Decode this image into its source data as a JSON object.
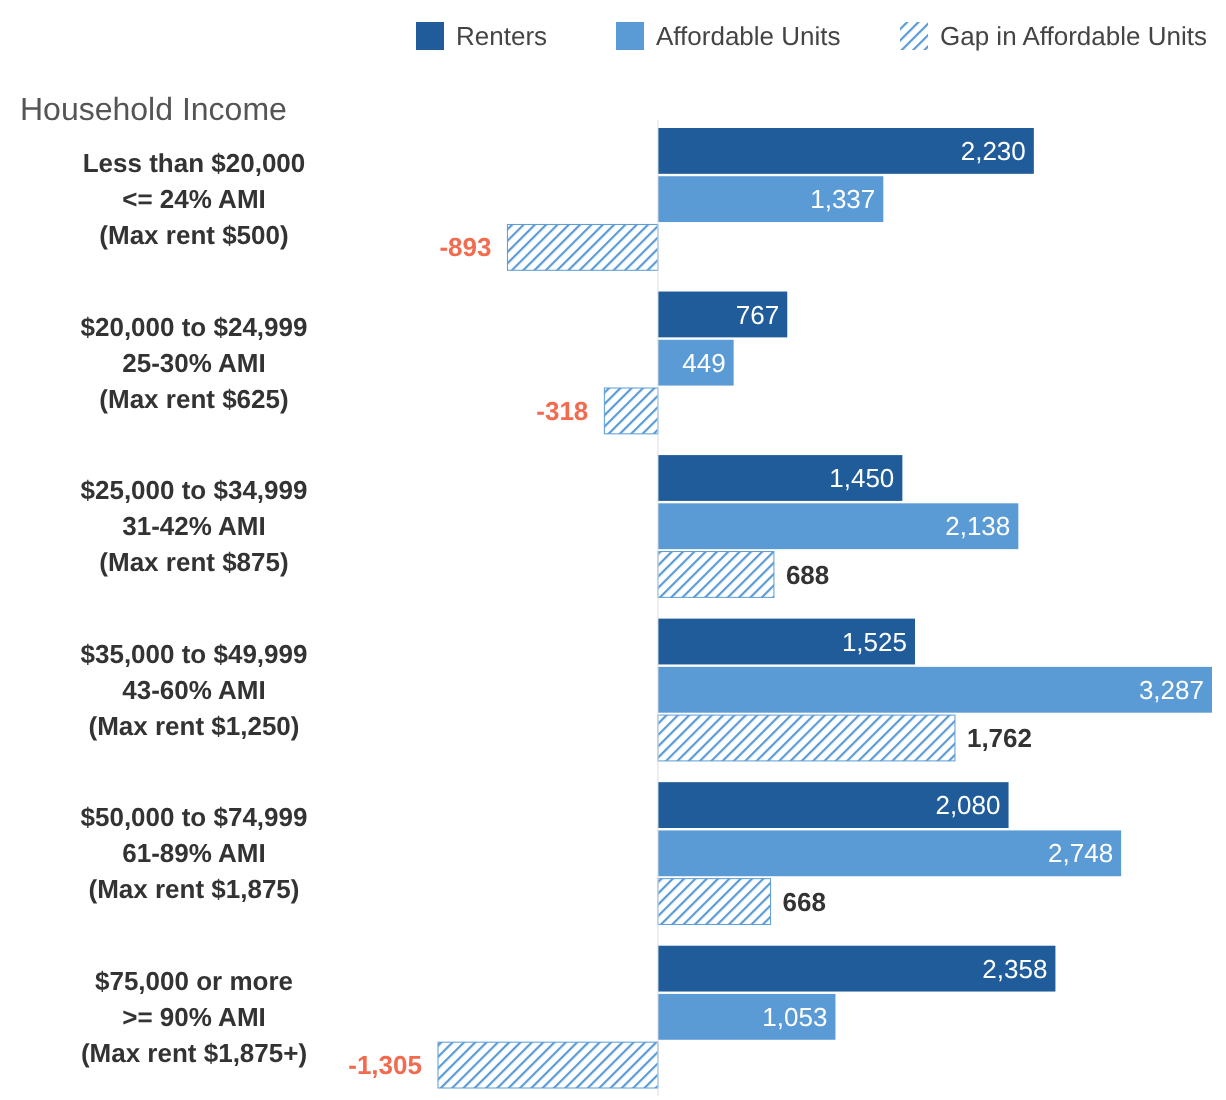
{
  "chart_data": {
    "type": "bar",
    "orientation": "horizontal",
    "title": "Household Income",
    "categories": [
      "Less than $20,000\n<= 24% AMI\n(Max rent $500)",
      "$20,000 to $24,999\n25-30% AMI\n(Max rent $625)",
      "$25,000 to $34,999\n31-42% AMI\n(Max rent $875)",
      "$35,000 to $49,999\n43-60% AMI\n(Max rent $1,250)",
      "$50,000 to $74,999\n61-89% AMI\n(Max rent $1,875)",
      "$75,000 or more\n>= 90% AMI\n(Max rent $1,875+)"
    ],
    "series": [
      {
        "name": "Renters",
        "color": "#1f5c99",
        "values": [
          2230,
          767,
          1450,
          1525,
          2080,
          2358
        ],
        "value_labels": [
          "2,230",
          "767",
          "1,450",
          "1,525",
          "2,080",
          "2,358"
        ]
      },
      {
        "name": "Affordable Units",
        "color": "#5b9bd5",
        "values": [
          1337,
          449,
          2138,
          3287,
          2748,
          1053
        ],
        "value_labels": [
          "1,337",
          "449",
          "2,138",
          "3,287",
          "2,748",
          "1,053"
        ]
      },
      {
        "name": "Gap in Affordable Units",
        "color": "#5b9bd5",
        "values": [
          -893,
          -318,
          688,
          1762,
          668,
          -1305
        ],
        "value_labels": [
          "-893",
          "-318",
          "688",
          "1,762",
          "668",
          "-1,305"
        ]
      }
    ],
    "legend": "top right"
  }
}
